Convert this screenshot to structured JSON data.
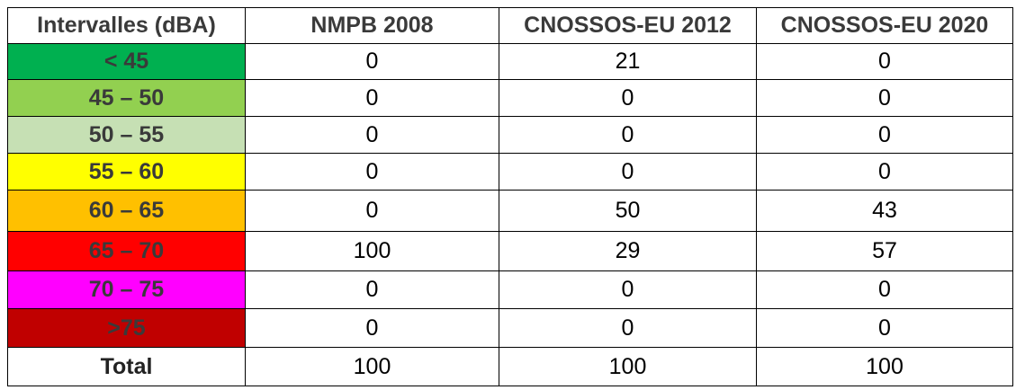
{
  "table": {
    "header": [
      "Intervalles (dBA)",
      "NMPB 2008",
      "CNOSSOS-EU 2012",
      "CNOSSOS-EU 2020"
    ],
    "rows": [
      {
        "label": "< 45",
        "color": "#00b050",
        "cells": [
          0,
          21,
          0
        ]
      },
      {
        "label": "45 – 50",
        "color": "#92d050",
        "cells": [
          0,
          0,
          0
        ]
      },
      {
        "label": "50 – 55",
        "color": "#c6e0b4",
        "cells": [
          0,
          0,
          0
        ]
      },
      {
        "label": "55 – 60",
        "color": "#ffff00",
        "cells": [
          0,
          0,
          0
        ]
      },
      {
        "label": "60 – 65",
        "color": "#ffc000",
        "cells": [
          0,
          50,
          43
        ]
      },
      {
        "label": "65 – 70",
        "color": "#ff0000",
        "cells": [
          100,
          29,
          57
        ]
      },
      {
        "label": "70 – 75",
        "color": "#ff00ff",
        "cells": [
          0,
          0,
          0
        ]
      },
      {
        "label": ">75",
        "color": "#c00000",
        "cells": [
          0,
          0,
          0
        ]
      }
    ],
    "total": {
      "label": "Total",
      "cells": [
        100,
        100,
        100
      ]
    }
  }
}
